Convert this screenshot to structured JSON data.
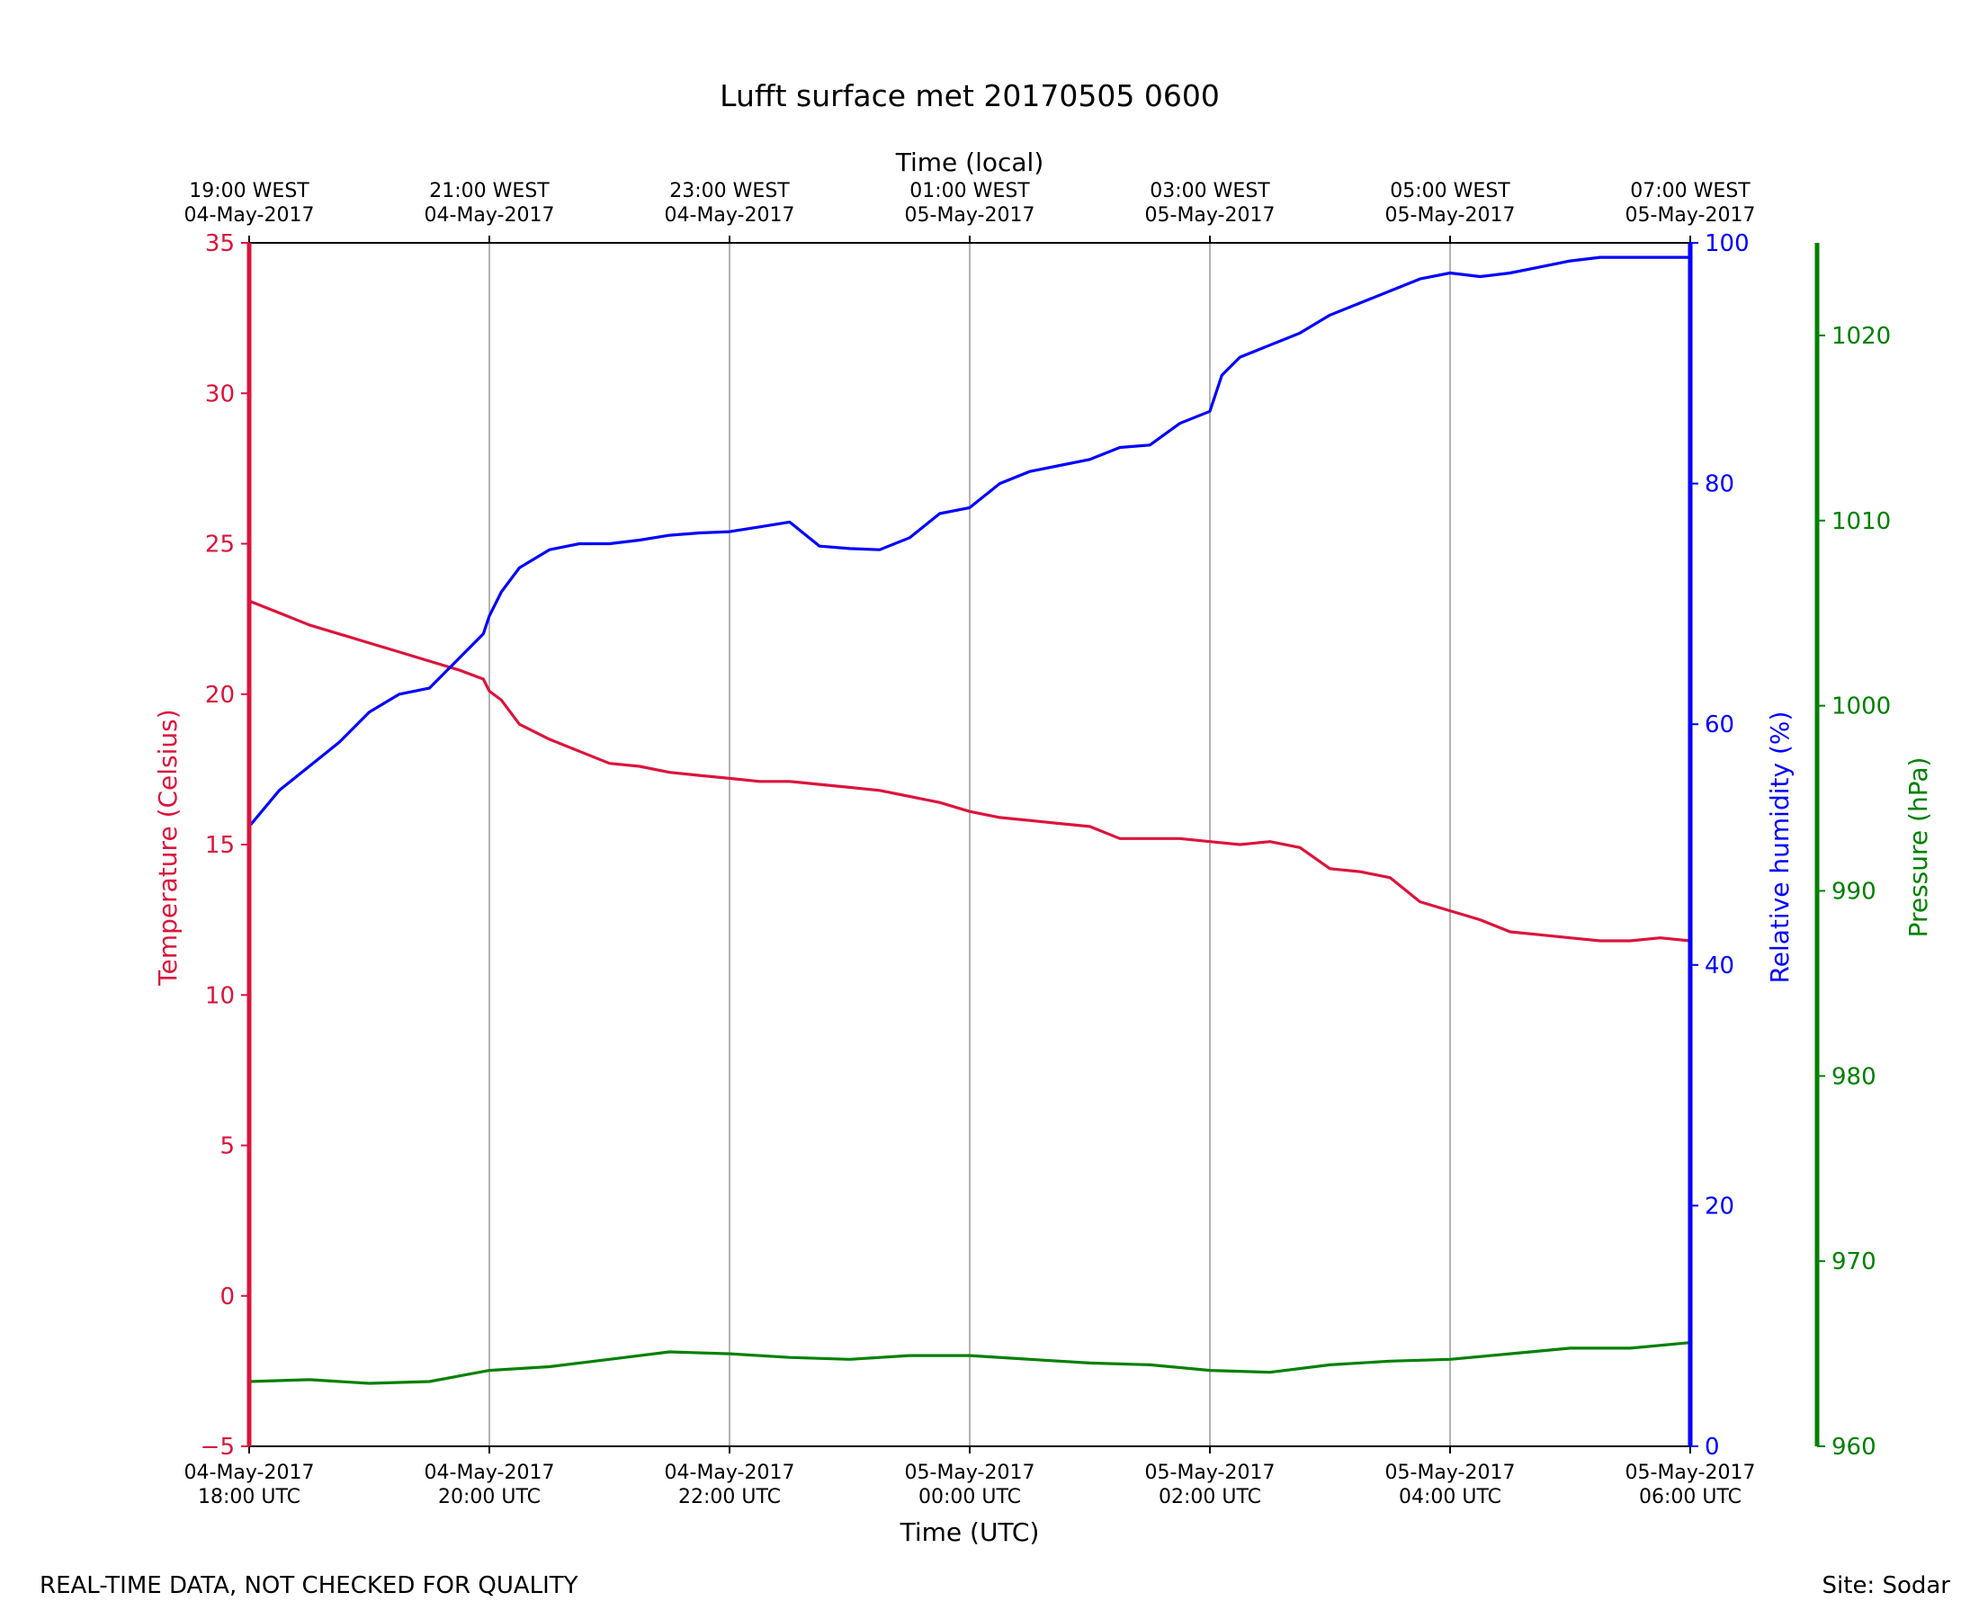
{
  "chart_data": {
    "type": "line",
    "title": "Lufft surface met 20170505 0600",
    "xlabel": "Time (UTC)",
    "xlabel_top": "Time (local)",
    "ylabel_left": "Temperature (Celsius)",
    "ylabel_right": "Relative humidity (%)",
    "ylabel_far_right": "Pressure (hPa)",
    "xlim_hours": [
      0,
      12
    ],
    "grid": "vertical only",
    "x_ticks_bottom": [
      {
        "line1": "04-May-2017",
        "line2": "18:00 UTC"
      },
      {
        "line1": "04-May-2017",
        "line2": "20:00 UTC"
      },
      {
        "line1": "04-May-2017",
        "line2": "22:00 UTC"
      },
      {
        "line1": "05-May-2017",
        "line2": "00:00 UTC"
      },
      {
        "line1": "05-May-2017",
        "line2": "02:00 UTC"
      },
      {
        "line1": "05-May-2017",
        "line2": "04:00 UTC"
      },
      {
        "line1": "05-May-2017",
        "line2": "06:00 UTC"
      }
    ],
    "x_ticks_top": [
      {
        "line1": "19:00 WEST",
        "line2": "04-May-2017"
      },
      {
        "line1": "21:00 WEST",
        "line2": "04-May-2017"
      },
      {
        "line1": "23:00 WEST",
        "line2": "04-May-2017"
      },
      {
        "line1": "01:00 WEST",
        "line2": "05-May-2017"
      },
      {
        "line1": "03:00 WEST",
        "line2": "05-May-2017"
      },
      {
        "line1": "05:00 WEST",
        "line2": "05-May-2017"
      },
      {
        "line1": "07:00 WEST",
        "line2": "05-May-2017"
      }
    ],
    "axes": {
      "temperature": {
        "ylim": [
          -5,
          35
        ],
        "ticks": [
          -5,
          0,
          5,
          10,
          15,
          20,
          25,
          30,
          35
        ],
        "color": "#dc143c"
      },
      "humidity": {
        "ylim": [
          0,
          100
        ],
        "ticks": [
          0,
          20,
          40,
          60,
          80,
          100
        ],
        "color": "#0000ff"
      },
      "pressure": {
        "ylim": [
          960,
          1025
        ],
        "ticks": [
          960,
          970,
          980,
          990,
          1000,
          1010,
          1020
        ],
        "color": "#008000"
      }
    },
    "series": [
      {
        "axis": "temperature",
        "color": "#dc143c",
        "x_hours": [
          0,
          0.25,
          0.5,
          0.75,
          1,
          1.25,
          1.5,
          1.75,
          1.95,
          2,
          2.1,
          2.25,
          2.5,
          2.75,
          3,
          3.25,
          3.5,
          3.75,
          4,
          4.25,
          4.5,
          4.75,
          5,
          5.25,
          5.5,
          5.75,
          6,
          6.25,
          6.5,
          6.75,
          7,
          7.25,
          7.5,
          7.75,
          8,
          8.25,
          8.5,
          8.75,
          9,
          9.25,
          9.5,
          9.75,
          10,
          10.25,
          10.5,
          10.75,
          11,
          11.25,
          11.5,
          11.75,
          12
        ],
        "y": [
          23.1,
          22.7,
          22.3,
          22.0,
          21.7,
          21.4,
          21.1,
          20.8,
          20.5,
          20.1,
          19.8,
          19.0,
          18.5,
          18.1,
          17.7,
          17.6,
          17.4,
          17.3,
          17.2,
          17.1,
          17.1,
          17.0,
          16.9,
          16.8,
          16.6,
          16.4,
          16.1,
          15.9,
          15.8,
          15.7,
          15.6,
          15.2,
          15.2,
          15.2,
          15.1,
          15.0,
          15.1,
          14.9,
          14.2,
          14.1,
          13.9,
          13.1,
          12.8,
          12.5,
          12.1,
          12.0,
          11.9,
          11.8,
          11.8,
          11.9,
          11.8
        ]
      },
      {
        "axis": "humidity",
        "color": "#0000ff",
        "x_hours": [
          0,
          0.25,
          0.5,
          0.75,
          1,
          1.25,
          1.5,
          1.75,
          1.95,
          2,
          2.1,
          2.25,
          2.5,
          2.75,
          3,
          3.25,
          3.5,
          3.75,
          4,
          4.25,
          4.5,
          4.75,
          5,
          5.25,
          5.5,
          5.75,
          6,
          6.25,
          6.5,
          6.75,
          7,
          7.25,
          7.5,
          7.75,
          8,
          8.1,
          8.25,
          8.5,
          8.75,
          9,
          9.25,
          9.5,
          9.75,
          10,
          10.25,
          10.5,
          10.75,
          11,
          11.25,
          11.5,
          11.75,
          12
        ],
        "y": [
          51.5,
          54.5,
          56.5,
          58.5,
          61.0,
          62.5,
          63.0,
          65.5,
          67.5,
          69.0,
          71.0,
          73.0,
          74.5,
          75.0,
          75.0,
          75.3,
          75.7,
          75.9,
          76.0,
          76.4,
          76.8,
          74.8,
          74.6,
          74.5,
          75.5,
          77.5,
          78.0,
          80.0,
          81.0,
          81.5,
          82.0,
          83.0,
          83.2,
          85.0,
          86.0,
          89.0,
          90.5,
          91.5,
          92.5,
          94.0,
          95.0,
          96.0,
          97.0,
          97.5,
          97.2,
          97.5,
          98.0,
          98.5,
          98.8,
          98.8,
          98.8,
          98.8
        ]
      },
      {
        "axis": "pressure",
        "color": "#008000",
        "x_hours": [
          0,
          0.5,
          1,
          1.5,
          2,
          2.5,
          3,
          3.5,
          4,
          4.5,
          5,
          5.5,
          6,
          6.5,
          7,
          7.5,
          8,
          8.5,
          9,
          9.5,
          10,
          10.5,
          11,
          11.5,
          12
        ],
        "y": [
          963.5,
          963.6,
          963.4,
          963.5,
          964.1,
          964.3,
          964.7,
          965.1,
          965.0,
          964.8,
          964.7,
          964.9,
          964.9,
          964.7,
          964.5,
          964.4,
          964.1,
          964.0,
          964.4,
          964.6,
          964.7,
          965.0,
          965.3,
          965.3,
          965.6
        ]
      }
    ]
  },
  "footer": {
    "left": "REAL-TIME DATA, NOT CHECKED FOR QUALITY",
    "right": "Site: Sodar"
  }
}
